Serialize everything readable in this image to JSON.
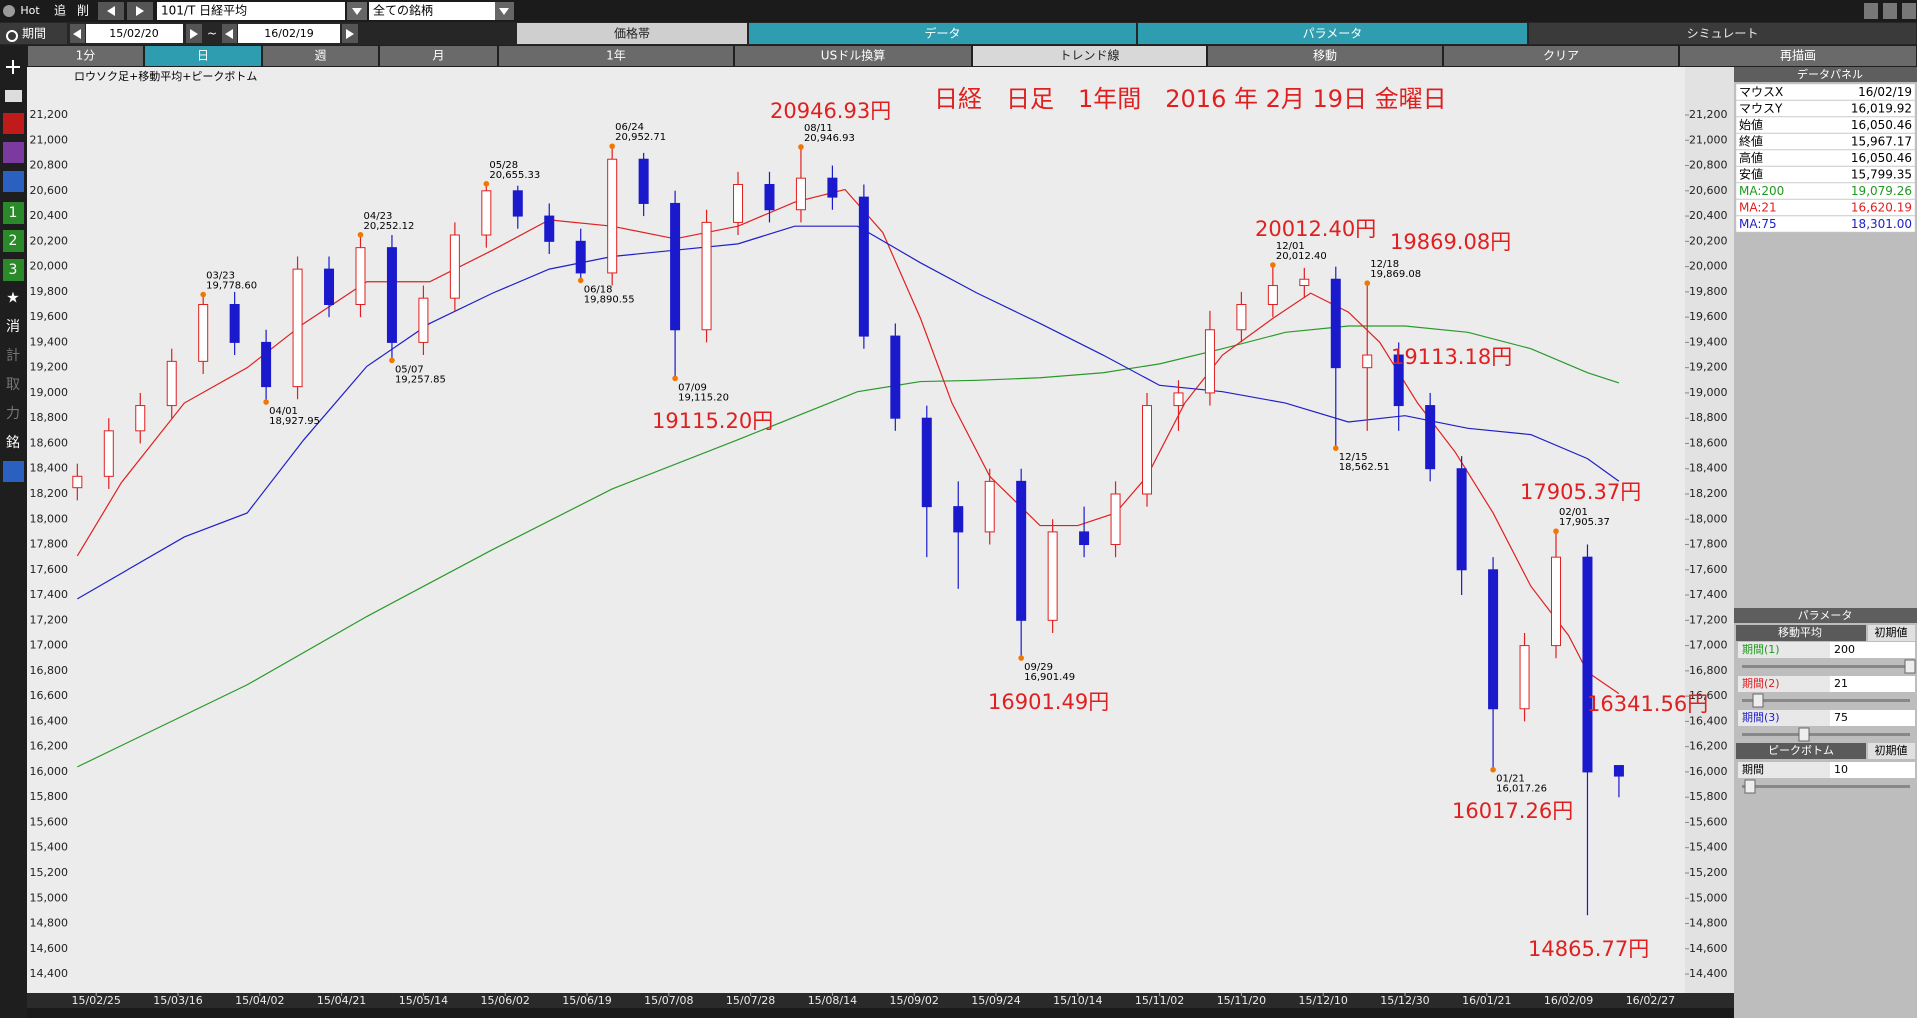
{
  "toolbar": {
    "hot": "Hot",
    "add": "追",
    "remove": "削",
    "symbol": "101/T 日経平均",
    "universe": "全ての銘柄",
    "period_label": "期間",
    "start": "15/02/20",
    "tilde": "~",
    "end": "16/02/19",
    "tabs": [
      "価格帯",
      "データ",
      "パラメータ",
      "シミュレート"
    ],
    "buttons": [
      "1分",
      "日",
      "週",
      "月",
      "1年",
      "USドル換算",
      "トレンド線",
      "移動",
      "クリア",
      "再描画"
    ]
  },
  "sidebar": [
    "1",
    "2",
    "3",
    "消",
    "計",
    "取",
    "力",
    "銘"
  ],
  "chart_data": {
    "type": "candlestick",
    "subtitle": "ロウソク足+移動平均+ピークボトム",
    "title": "日経　日足　1年間　2016 年 2月 19日 金曜日",
    "up_color": "#e02020",
    "down_color": "#1a1acc",
    "x": [
      0,
      5,
      10,
      15,
      20,
      25,
      30,
      35,
      40,
      45,
      50,
      55,
      60,
      65,
      70,
      75,
      80,
      85,
      90,
      95,
      100,
      105,
      110,
      115,
      120,
      125,
      130,
      135,
      140,
      145,
      150,
      155,
      160,
      165,
      170,
      175,
      180,
      185,
      190,
      195,
      200,
      205,
      210,
      215,
      220,
      225,
      230,
      235,
      240,
      245
    ],
    "open": [
      18250,
      18340,
      18700,
      18900,
      19250,
      19700,
      19400,
      19050,
      19980,
      19700,
      20150,
      19400,
      19750,
      20250,
      20600,
      20400,
      20200,
      19950,
      20850,
      20500,
      19500,
      20350,
      20650,
      20450,
      20700,
      20550,
      19450,
      18800,
      18100,
      17900,
      18300,
      17200,
      17900,
      17800,
      18200,
      18900,
      19000,
      19500,
      19700,
      19850,
      19900,
      19200,
      19300,
      18900,
      18400,
      17600,
      16500,
      17000,
      17700,
      16050.46
    ],
    "high": [
      18440,
      18800,
      19000,
      19350,
      19778.6,
      19800,
      19500,
      20080,
      20080,
      20252.12,
      20250,
      19850,
      20350,
      20655.33,
      20640,
      20500,
      20300,
      20952.71,
      20900,
      20600,
      20450,
      20750,
      20750,
      20946.93,
      20800,
      20650,
      19550,
      18900,
      18300,
      18400,
      18400,
      18000,
      18100,
      18300,
      19000,
      19100,
      19650,
      19800,
      20012.4,
      19990,
      20000,
      19869.08,
      19400,
      19000,
      18500,
      17700,
      17100,
      17905.37,
      17800,
      16050.46
    ],
    "low": [
      18150,
      18240,
      18600,
      18800,
      19150,
      19300,
      18927.95,
      18950,
      19600,
      19600,
      19257.85,
      19300,
      19650,
      20150,
      20300,
      20100,
      19890.55,
      19850,
      20400,
      19115.2,
      19400,
      20250,
      20350,
      20350,
      20450,
      19350,
      18700,
      17700,
      17450,
      17800,
      16901.49,
      17100,
      17700,
      17700,
      18100,
      18700,
      18900,
      19400,
      19600,
      19750,
      18562.51,
      18700,
      18700,
      18300,
      17400,
      16017.26,
      16400,
      16900,
      14865.77,
      15799.35
    ],
    "close": [
      18340,
      18700,
      18900,
      19250,
      19700,
      19400,
      19050,
      19980,
      19700,
      20150,
      19400,
      19750,
      20250,
      20600,
      20400,
      20200,
      19950,
      20850,
      20500,
      19500,
      20350,
      20650,
      20450,
      20700,
      20550,
      19450,
      18800,
      18100,
      17900,
      18300,
      17200,
      17900,
      17800,
      18200,
      18900,
      19000,
      19500,
      19700,
      19850,
      19900,
      19200,
      19300,
      18900,
      18400,
      17600,
      16500,
      17000,
      17700,
      16000,
      15967.17
    ],
    "moving_averages": [
      {
        "color": "#2a9a2a",
        "x": [
          0,
          27,
          46,
          66,
          85,
          105,
          124,
          134,
          143,
          153,
          163,
          172,
          182,
          192,
          202,
          211,
          221,
          231,
          240,
          245
        ],
        "values": [
          16040,
          16690,
          17230,
          17760,
          18240,
          18630,
          19010,
          19090,
          19100,
          19120,
          19160,
          19230,
          19350,
          19480,
          19530,
          19530,
          19480,
          19350,
          19160,
          19079.26
        ]
      },
      {
        "color": "#e02020",
        "x": [
          0,
          7,
          17,
          27,
          36,
          46,
          56,
          66,
          75,
          85,
          95,
          105,
          114,
          122,
          128,
          134,
          139,
          145,
          153,
          159,
          165,
          170,
          176,
          182,
          190,
          196,
          202,
          207,
          213,
          219,
          225,
          231,
          237,
          240,
          245
        ],
        "values": [
          17710,
          18290,
          18920,
          19200,
          19550,
          19880,
          19880,
          20130,
          20370,
          20320,
          20220,
          20320,
          20510,
          20610,
          20270,
          19590,
          18920,
          18340,
          17950,
          17950,
          18050,
          18340,
          18920,
          19300,
          19590,
          19790,
          19640,
          19400,
          18920,
          18530,
          18050,
          17470,
          17080,
          16790,
          16620.19
        ]
      },
      {
        "color": "#2020c8",
        "x": [
          0,
          17,
          27,
          36,
          46,
          56,
          66,
          75,
          85,
          95,
          105,
          114,
          124,
          134,
          143,
          153,
          163,
          172,
          182,
          192,
          202,
          211,
          221,
          231,
          240,
          245
        ],
        "values": [
          17370,
          17860,
          18050,
          18630,
          19210,
          19550,
          19790,
          19980,
          20080,
          20130,
          20180,
          20320,
          20320,
          20030,
          19790,
          19550,
          19300,
          19060,
          19010,
          18920,
          18770,
          18820,
          18720,
          18670,
          18480,
          18301
        ]
      }
    ],
    "peaks": [
      {
        "x": 20,
        "value": 19778.6,
        "date": "03/23",
        "label": "19,778.60",
        "kind": "high"
      },
      {
        "x": 30,
        "value": 18927.95,
        "date": "04/01",
        "label": "18,927.95",
        "kind": "low"
      },
      {
        "x": 45,
        "value": 20252.12,
        "date": "04/23",
        "label": "20,252.12",
        "kind": "high"
      },
      {
        "x": 50,
        "value": 19257.85,
        "date": "05/07",
        "label": "19,257.85",
        "kind": "low"
      },
      {
        "x": 65,
        "value": 20655.33,
        "date": "05/28",
        "label": "20,655.33",
        "kind": "high"
      },
      {
        "x": 80,
        "value": 19890.55,
        "date": "06/18",
        "label": "19,890.55",
        "kind": "low"
      },
      {
        "x": 85,
        "value": 20952.71,
        "date": "06/24",
        "label": "20,952.71",
        "kind": "high"
      },
      {
        "x": 95,
        "value": 19115.2,
        "date": "07/09",
        "label": "19,115.20",
        "kind": "low"
      },
      {
        "x": 115,
        "value": 20946.93,
        "date": "08/11",
        "label": "20,946.93",
        "kind": "high"
      },
      {
        "x": 150,
        "value": 16901.49,
        "date": "09/29",
        "label": "16,901.49",
        "kind": "low"
      },
      {
        "x": 190,
        "value": 20012.4,
        "date": "12/01",
        "label": "20,012.40",
        "kind": "high"
      },
      {
        "x": 200,
        "value": 18562.51,
        "date": "12/15",
        "label": "18,562.51",
        "kind": "low"
      },
      {
        "x": 205,
        "value": 19869.08,
        "date": "12/18",
        "label": "19,869.08",
        "kind": "high"
      },
      {
        "x": 225,
        "value": 16017.26,
        "date": "01/21",
        "label": "16,017.26",
        "kind": "low"
      },
      {
        "x": 235,
        "value": 17905.37,
        "date": "02/01",
        "label": "17,905.37",
        "kind": "high"
      }
    ],
    "peak_color": "#f07800",
    "annotations": [
      "20946.93円",
      "19115.20円",
      "16901.49円",
      "20012.40円",
      "19869.08円",
      "19113.18円",
      "17905.37円",
      "16341.56円",
      "16017.26円",
      "14865.77円"
    ],
    "annotation_color": "#e02020",
    "xlim": [
      -8,
      255.5
    ],
    "xticks": [
      {
        "value": 3,
        "label": "15/02/25"
      },
      {
        "value": 16,
        "label": "15/03/16"
      },
      {
        "value": 29,
        "label": "15/04/02"
      },
      {
        "value": 42,
        "label": "15/04/21"
      },
      {
        "value": 55,
        "label": "15/05/14"
      },
      {
        "value": 68,
        "label": "15/06/02"
      },
      {
        "value": 81,
        "label": "15/06/19"
      },
      {
        "value": 94,
        "label": "15/07/08"
      },
      {
        "value": 107,
        "label": "15/07/28"
      },
      {
        "value": 120,
        "label": "15/08/14"
      },
      {
        "value": 133,
        "label": "15/09/02"
      },
      {
        "value": 146,
        "label": "15/09/24"
      },
      {
        "value": 159,
        "label": "15/10/14"
      },
      {
        "value": 172,
        "label": "15/11/02"
      },
      {
        "value": 185,
        "label": "15/11/20"
      },
      {
        "value": 198,
        "label": "15/12/10"
      },
      {
        "value": 211,
        "label": "15/12/30"
      },
      {
        "value": 224,
        "label": "16/01/21"
      },
      {
        "value": 237,
        "label": "16/02/09"
      },
      {
        "value": 250,
        "label": "16/02/27"
      }
    ],
    "ylim": [
      14250,
      21580
    ],
    "yticks": [
      {
        "value": 14400,
        "label": "14,400"
      },
      {
        "value": 14600,
        "label": "14,600"
      },
      {
        "value": 14800,
        "label": "14,800"
      },
      {
        "value": 15000,
        "label": "15,000"
      },
      {
        "value": 15200,
        "label": "15,200"
      },
      {
        "value": 15400,
        "label": "15,400"
      },
      {
        "value": 15600,
        "label": "15,600"
      },
      {
        "value": 15800,
        "label": "15,800"
      },
      {
        "value": 16000,
        "label": "16,000"
      },
      {
        "value": 16200,
        "label": "16,200"
      },
      {
        "value": 16400,
        "label": "16,400"
      },
      {
        "value": 16600,
        "label": "16,600"
      },
      {
        "value": 16800,
        "label": "16,800"
      },
      {
        "value": 17000,
        "label": "17,000"
      },
      {
        "value": 17200,
        "label": "17,200"
      },
      {
        "value": 17400,
        "label": "17,400"
      },
      {
        "value": 17600,
        "label": "17,600"
      },
      {
        "value": 17800,
        "label": "17,800"
      },
      {
        "value": 18000,
        "label": "18,000"
      },
      {
        "value": 18200,
        "label": "18,200"
      },
      {
        "value": 18400,
        "label": "18,400"
      },
      {
        "value": 18600,
        "label": "18,600"
      },
      {
        "value": 18800,
        "label": "18,800"
      },
      {
        "value": 19000,
        "label": "19,000"
      },
      {
        "value": 19200,
        "label": "19,200"
      },
      {
        "value": 19400,
        "label": "19,400"
      },
      {
        "value": 19600,
        "label": "19,600"
      },
      {
        "value": 19800,
        "label": "19,800"
      },
      {
        "value": 20000,
        "label": "20,000"
      },
      {
        "value": 20200,
        "label": "20,200"
      },
      {
        "value": 20400,
        "label": "20,400"
      },
      {
        "value": 20600,
        "label": "20,600"
      },
      {
        "value": 20800,
        "label": "20,800"
      },
      {
        "value": 21000,
        "label": "21,000"
      },
      {
        "value": 21200,
        "label": "21,200"
      }
    ]
  },
  "data_panel": {
    "title": "データパネル",
    "rows": [
      {
        "label": "マウスX",
        "value": "16/02/19"
      },
      {
        "label": "マウスY",
        "value": "16,019.92"
      },
      {
        "label": "始値",
        "value": "16,050.46"
      },
      {
        "label": "終値",
        "value": "15,967.17"
      },
      {
        "label": "高値",
        "value": "16,050.46"
      },
      {
        "label": "安値",
        "value": "15,799.35"
      },
      {
        "label": "MA:200",
        "value": "19,079.26",
        "color": "#1e9a1e"
      },
      {
        "label": "MA:21",
        "value": "16,620.19",
        "color": "#e02020"
      },
      {
        "label": "MA:75",
        "value": "18,301.00",
        "color": "#2020c8"
      }
    ]
  },
  "parameter_panel": {
    "title": "パラメータ",
    "ma_title": "移動平均",
    "reset": "初期値",
    "periods": [
      {
        "label": "期間(1)",
        "value": 200,
        "color": "#1e9a1e"
      },
      {
        "label": "期間(2)",
        "value": 21,
        "color": "#e02020"
      },
      {
        "label": "期間(3)",
        "value": 75,
        "color": "#2020c8"
      }
    ],
    "peak_title": "ピークボトム",
    "peak_reset": "初期値",
    "peak_period": {
      "label": "期間",
      "value": 10
    }
  }
}
